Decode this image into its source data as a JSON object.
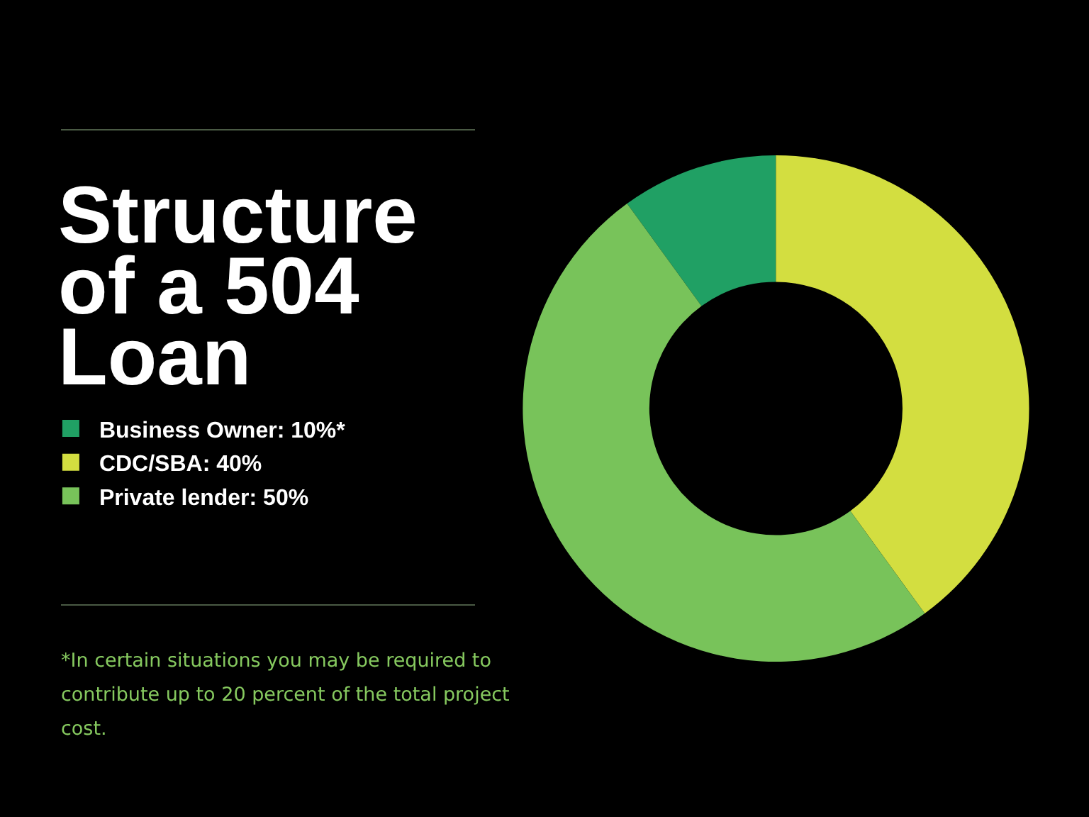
{
  "chart_data": {
    "type": "donut",
    "title": "Structure of a 504 Loan",
    "categories": [
      "Business Owner: 10%*",
      "CDC/SBA: 40%",
      "Private lender: 50%"
    ],
    "values": [
      10,
      40,
      50
    ],
    "colors": [
      "#20a064",
      "#d3de40",
      "#78c35a"
    ],
    "legend": "left",
    "annotations": [
      "*In certain situations you may be required to contribute up to 20 percent of the total project cost."
    ]
  }
}
